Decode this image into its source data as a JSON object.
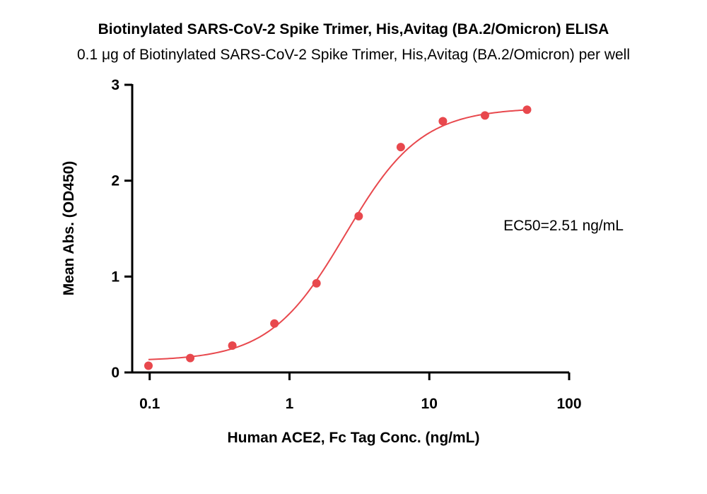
{
  "chart_data": {
    "type": "scatter",
    "title": "Biotinylated SARS-CoV-2 Spike Trimer, His,Avitag (BA.2/Omicron) ELISA",
    "subtitle": "0.1 μg of Biotinylated SARS-CoV-2 Spike Trimer, His,Avitag (BA.2/Omicron) per well",
    "xlabel": "Human ACE2, Fc Tag Conc. (ng/mL)",
    "ylabel": "Mean Abs. (OD450)",
    "x_scale": "log",
    "xlim": [
      0.075,
      100
    ],
    "ylim": [
      0,
      3
    ],
    "x_ticks": [
      0.1,
      1,
      10,
      100
    ],
    "x_tick_labels": [
      "0.1",
      "1",
      "10",
      "100"
    ],
    "y_ticks": [
      0,
      1,
      2,
      3
    ],
    "y_tick_labels": [
      "0",
      "1",
      "2",
      "3"
    ],
    "grid": false,
    "legend": "none",
    "annotation": "EC50=2.51 ng/mL",
    "colors": {
      "series": "#e8484d",
      "axis": "#000000"
    },
    "series": [
      {
        "x": [
          0.098,
          0.195,
          0.39,
          0.78,
          1.56,
          3.125,
          6.25,
          12.5,
          25,
          50
        ],
        "y": [
          0.07,
          0.15,
          0.28,
          0.51,
          0.93,
          1.63,
          2.35,
          2.62,
          2.68,
          2.74
        ]
      }
    ],
    "fit": {
      "model": "4PL",
      "bottom": 0.12,
      "top": 2.76,
      "ec50": 2.51,
      "hill": 1.6
    }
  }
}
